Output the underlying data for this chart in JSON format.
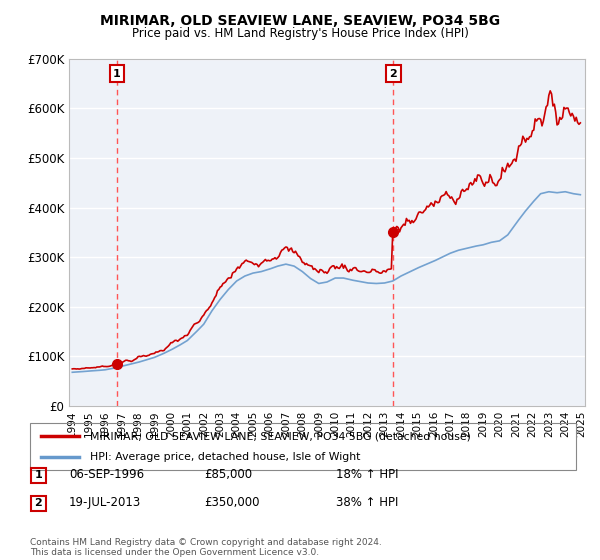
{
  "title": "MIRIMAR, OLD SEAVIEW LANE, SEAVIEW, PO34 5BG",
  "subtitle": "Price paid vs. HM Land Registry's House Price Index (HPI)",
  "legend_line1": "MIRIMAR, OLD SEAVIEW LANE, SEAVIEW, PO34 5BG (detached house)",
  "legend_line2": "HPI: Average price, detached house, Isle of Wight",
  "transaction1": {
    "label": "1",
    "date": "06-SEP-1996",
    "price": "£85,000",
    "hpi": "18% ↑ HPI",
    "year": 1996.72,
    "value": 85000
  },
  "transaction2": {
    "label": "2",
    "date": "19-JUL-2013",
    "price": "£350,000",
    "hpi": "38% ↑ HPI",
    "year": 2013.54,
    "value": 350000
  },
  "footnote": "Contains HM Land Registry data © Crown copyright and database right 2024.\nThis data is licensed under the Open Government Licence v3.0.",
  "ylim": [
    0,
    700000
  ],
  "xlim_start": 1993.8,
  "xlim_end": 2025.2,
  "hpi_color": "#6699cc",
  "price_color": "#cc0000",
  "bg_color": "#eef2f8",
  "grid_color": "#ffffff",
  "vline_color": "#ff5555"
}
